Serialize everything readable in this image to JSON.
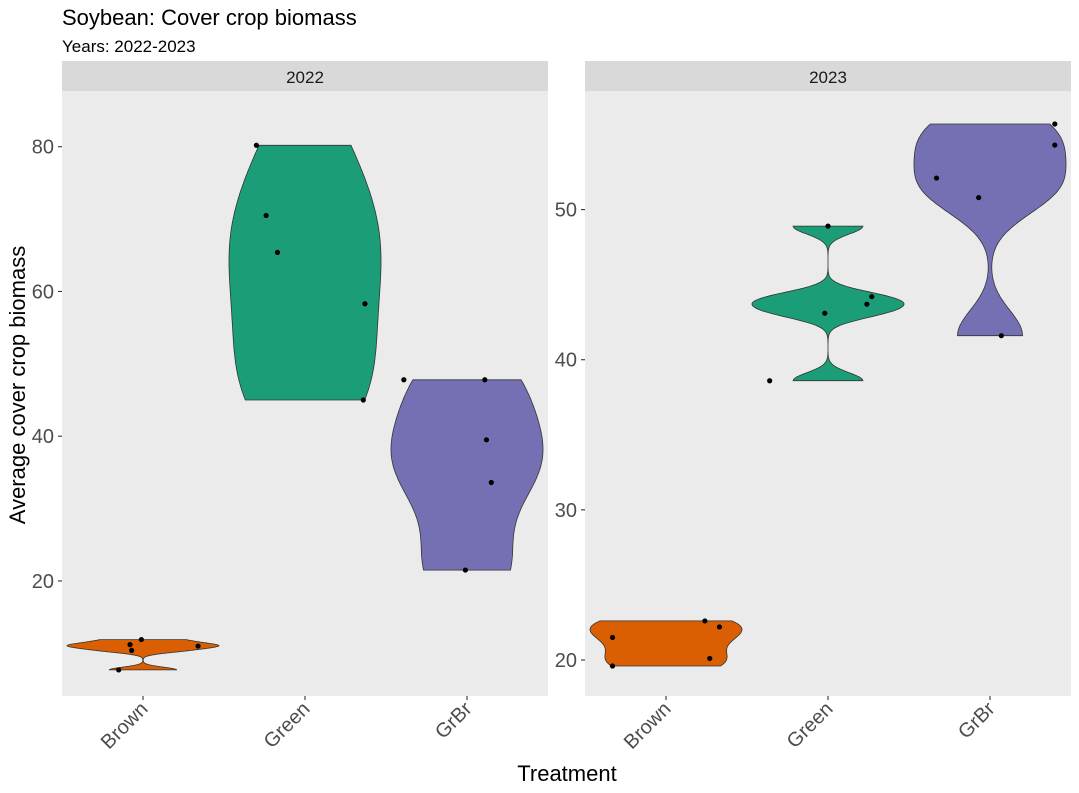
{
  "chart_data": {
    "type": "violin",
    "title": "Soybean: Cover crop biomass",
    "subtitle": "Years: 2022-2023",
    "xlabel": "Treatment",
    "ylabel": "Average cover crop biomass",
    "categories": [
      "Brown",
      "Green",
      "GrBr"
    ],
    "colors": {
      "Brown": "#D95F02",
      "Green": "#1B9E77",
      "GrBr": "#7570B3"
    },
    "panels": [
      {
        "label": "2022",
        "ylim": [
          4.1,
          87.7
        ],
        "yticks": [
          20,
          40,
          60,
          80
        ],
        "groups": [
          {
            "category": "Brown",
            "points": [
              {
                "x": 0.85,
                "y": 7.7
              },
              {
                "x": 0.93,
                "y": 10.4
              },
              {
                "x": 0.92,
                "y": 11.2
              },
              {
                "x": 0.99,
                "y": 11.9
              },
              {
                "x": 1.34,
                "y": 11.0
              }
            ]
          },
          {
            "category": "Green",
            "points": [
              {
                "x": 1.7,
                "y": 80.2
              },
              {
                "x": 1.76,
                "y": 70.5
              },
              {
                "x": 1.83,
                "y": 65.4
              },
              {
                "x": 2.37,
                "y": 58.3
              },
              {
                "x": 2.36,
                "y": 45.0
              },
              {
                "x": 2.61,
                "y": 47.8
              }
            ]
          },
          {
            "category": "GrBr",
            "points": [
              {
                "x": 3.11,
                "y": 47.8
              },
              {
                "x": 3.12,
                "y": 39.5
              },
              {
                "x": 3.15,
                "y": 33.6
              },
              {
                "x": 2.99,
                "y": 21.5
              }
            ]
          }
        ]
      },
      {
        "label": "2023",
        "ylim": [
          17.6,
          57.9
        ],
        "yticks": [
          20,
          30,
          40,
          50
        ],
        "groups": [
          {
            "category": "Brown",
            "points": [
              {
                "x": 0.67,
                "y": 21.5
              },
              {
                "x": 0.67,
                "y": 19.6
              },
              {
                "x": 1.24,
                "y": 22.6
              },
              {
                "x": 1.33,
                "y": 22.2
              },
              {
                "x": 1.27,
                "y": 20.1
              }
            ]
          },
          {
            "category": "Green",
            "points": [
              {
                "x": 1.64,
                "y": 38.6
              },
              {
                "x": 2.0,
                "y": 48.9
              },
              {
                "x": 1.98,
                "y": 43.1
              },
              {
                "x": 2.24,
                "y": 43.7
              },
              {
                "x": 2.27,
                "y": 44.2
              }
            ]
          },
          {
            "category": "GrBr",
            "points": [
              {
                "x": 2.67,
                "y": 52.1
              },
              {
                "x": 2.93,
                "y": 50.8
              },
              {
                "x": 3.07,
                "y": 41.6
              },
              {
                "x": 3.4,
                "y": 55.7
              },
              {
                "x": 3.4,
                "y": 54.3
              }
            ]
          }
        ]
      }
    ]
  }
}
